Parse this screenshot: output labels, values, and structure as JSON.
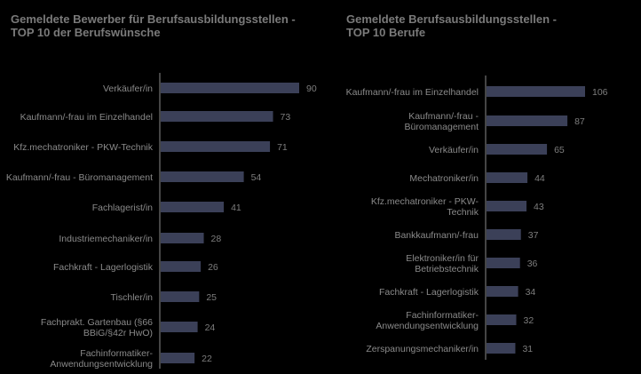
{
  "colors": {
    "background": "#000000",
    "bar": "#3b4058",
    "axis": "#8a8a8a",
    "text": "#8a8a8a"
  },
  "chart_data": [
    {
      "type": "bar",
      "orientation": "horizontal",
      "title_line1": "Gemeldete Bewerber für Berufsausbildungsstellen -",
      "title_line2": "TOP 10 der Berufswünsche",
      "categories": [
        [
          "Verkäufer/in"
        ],
        [
          "Kaufmann/-frau im Einzelhandel"
        ],
        [
          "Kfz.mechatroniker - PKW-Technik"
        ],
        [
          "Kaufmann/-frau - Büromanagement"
        ],
        [
          "Fachlagerist/in"
        ],
        [
          "Industriemechaniker/in"
        ],
        [
          "Fachkraft - Lagerlogistik"
        ],
        [
          "Tischler/in"
        ],
        [
          "Fachprakt. Gartenbau (§66",
          "BBiG/§42r HwO)"
        ],
        [
          "Fachinformatiker-",
          "Anwendungsentwicklung"
        ]
      ],
      "values": [
        90,
        73,
        71,
        54,
        41,
        28,
        26,
        25,
        24,
        22
      ],
      "xlim": [
        0,
        90
      ],
      "grid": false
    },
    {
      "type": "bar",
      "orientation": "horizontal",
      "title_line1": "Gemeldete Berufsausbildungsstellen -",
      "title_line2": "TOP 10 Berufe",
      "categories": [
        [
          "Kaufmann/-frau im Einzelhandel"
        ],
        [
          "Kaufmann/-frau -",
          "Büromanagement"
        ],
        [
          "Verkäufer/in"
        ],
        [
          "Mechatroniker/in"
        ],
        [
          "Kfz.mechatroniker - PKW-",
          "Technik"
        ],
        [
          "Bankkaufmann/-frau"
        ],
        [
          "Elektroniker/in für",
          "Betriebstechnik"
        ],
        [
          "Fachkraft - Lagerlogistik"
        ],
        [
          "Fachinformatiker-",
          "Anwendungsentwicklung"
        ],
        [
          "Zerspanungsmechaniker/in"
        ]
      ],
      "values": [
        106,
        87,
        65,
        44,
        43,
        37,
        36,
        34,
        32,
        31
      ],
      "xlim": [
        0,
        106
      ],
      "grid": false
    }
  ]
}
